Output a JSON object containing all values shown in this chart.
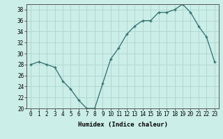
{
  "x": [
    0,
    1,
    2,
    3,
    4,
    5,
    6,
    7,
    8,
    9,
    10,
    11,
    12,
    13,
    14,
    15,
    16,
    17,
    18,
    19,
    20,
    21,
    22,
    23
  ],
  "y": [
    28,
    28.5,
    28,
    27.5,
    25,
    23.5,
    21.5,
    20,
    20,
    24.5,
    29,
    31,
    33.5,
    35,
    36,
    36,
    37.5,
    37.5,
    38,
    39,
    37.5,
    35,
    33,
    28.5
  ],
  "line_color": "#2e6e6e",
  "marker": "+",
  "marker_color": "#2e6e6e",
  "bg_color": "#cceee8",
  "grid_color": "#b0d8d0",
  "xlabel": "Humidex (Indice chaleur)",
  "xlim": [
    -0.5,
    23.5
  ],
  "ylim": [
    20,
    39
  ],
  "yticks": [
    20,
    22,
    24,
    26,
    28,
    30,
    32,
    34,
    36,
    38
  ],
  "xtick_labels": [
    "0",
    "1",
    "2",
    "3",
    "4",
    "5",
    "6",
    "7",
    "8",
    "9",
    "10",
    "11",
    "12",
    "13",
    "14",
    "15",
    "16",
    "17",
    "18",
    "19",
    "20",
    "21",
    "22",
    "23"
  ],
  "label_fontsize": 6.5,
  "tick_fontsize": 5.5
}
